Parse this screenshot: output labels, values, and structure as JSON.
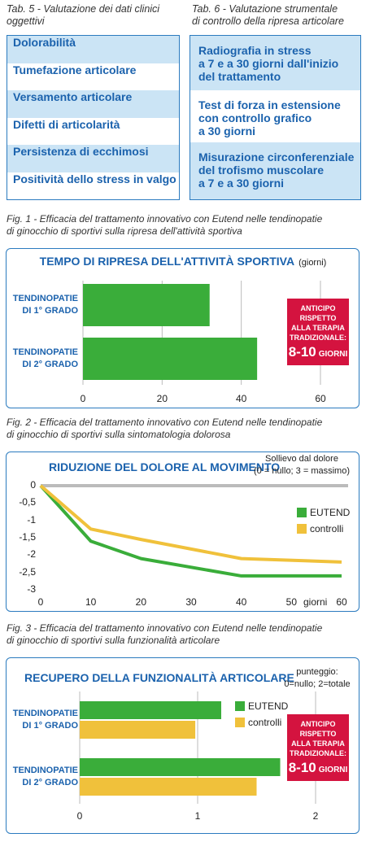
{
  "tab5": {
    "caption": [
      "Tab. 5  - Valutazione dei dati clinici",
      "oggettivi"
    ],
    "rows": [
      "Dolorabilità",
      "Tumefazione articolare",
      "Versamento articolare",
      "Difetti di articolarità",
      "Persistenza di ecchimosi",
      "Positività dello stress in valgo"
    ]
  },
  "tab6": {
    "caption": [
      "Tab. 6  - Valutazione strumentale",
      "di controllo della ripresa articolare"
    ],
    "rows": [
      [
        "Radiografia in stress",
        "a 7 e a 30 giorni dall'inizio",
        "del trattamento"
      ],
      [
        "Test di forza in estensione",
        "con controllo grafico",
        "a 30 giorni"
      ],
      [
        "Misurazione circonferenziale",
        "del trofismo muscolare",
        "a 7 e a 30 giorni"
      ]
    ]
  },
  "chart_data": [
    {
      "type": "hbar",
      "caption": [
        "Fig. 1 - Efficacia del trattamento innovativo con Eutend nelle tendinopatie",
        "di ginocchio di sportivi sulla ripresa dell'attività sportiva"
      ],
      "title": "TEMPO DI RIPRESA DELL'ATTIVITÀ SPORTIVA",
      "unit_label": "(giorni)",
      "categories": [
        "TENDINOPATIE DI 1° GRADO",
        "TENDINOPATIE DI 2° GRADO"
      ],
      "values": [
        32,
        44
      ],
      "color": "#3aad3a",
      "xlim": [
        0,
        60
      ],
      "xticks": [
        0,
        20,
        40,
        60
      ],
      "grid": true,
      "annotation": {
        "text": "ANTICIPO RISPETTO ALLA TERAPIA TRADIZIONALE:",
        "highlight": "8-10",
        "unit": "GIORNI"
      }
    },
    {
      "type": "line",
      "caption": [
        "Fig. 2 - Efficacia del trattamento innovativo con Eutend nelle tendinopatie",
        "di ginocchio di sportivi sulla sintomatologia dolorosa"
      ],
      "title": "RIDUZIONE DEL DOLORE AL MOVIMENTO",
      "note": [
        "Sollievo dal dolore",
        "(0 = nullo; 3 = massimo)"
      ],
      "x": [
        0,
        10,
        20,
        40,
        60
      ],
      "series": [
        {
          "name": "EUTEND",
          "color": "#3aad3a",
          "values": [
            0,
            -1.6,
            -2.1,
            -2.6,
            -2.6
          ]
        },
        {
          "name": "controlli",
          "color": "#f0c13b",
          "values": [
            0,
            -1.25,
            -1.55,
            -2.1,
            -2.2
          ]
        }
      ],
      "xlim": [
        0,
        60
      ],
      "xticks": [
        0,
        10,
        20,
        30,
        40,
        50,
        60
      ],
      "xlabel": "giorni",
      "ylim": [
        -3,
        0
      ],
      "yticks": [
        0,
        {
          "value": -0.5,
          "label": "-0,5"
        },
        -1,
        {
          "value": -1.5,
          "label": "-1,5"
        },
        -2,
        {
          "value": -2.5,
          "label": "-2,5"
        },
        -3
      ]
    },
    {
      "type": "grouped-hbar",
      "caption": [
        "Fig. 3 - Efficacia del trattamento innovativo con Eutend nelle tendinopatie",
        "di ginocchio di sportivi sulla funzionalità articolare"
      ],
      "title": "RECUPERO DELLA FUNZIONALITÀ ARTICOLARE",
      "note": [
        "punteggio:",
        "0=nullo; 2=totale"
      ],
      "categories": [
        "TENDINOPATIE DI 1° GRADO",
        "TENDINOPATIE DI 2° GRADO"
      ],
      "series": [
        {
          "name": "EUTEND",
          "color": "#3aad3a",
          "values": [
            1.2,
            1.7
          ]
        },
        {
          "name": "controlli",
          "color": "#f0c13b",
          "values": [
            0.98,
            1.5
          ]
        }
      ],
      "xlim": [
        0,
        2
      ],
      "xticks": [
        0,
        1,
        2
      ],
      "grid": true,
      "annotation": {
        "text": "ANTICIPO RISPETTO ALLA TERAPIA TRADIZIONALE:",
        "highlight": "8-10",
        "unit": "GIORNI"
      }
    }
  ]
}
